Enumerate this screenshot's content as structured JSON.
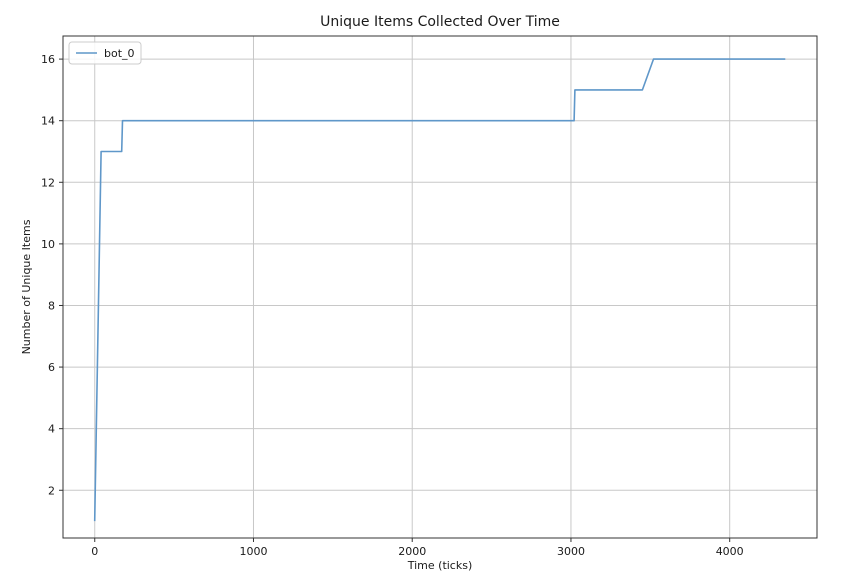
{
  "chart_data": {
    "type": "line",
    "title": "Unique Items Collected Over Time",
    "xlabel": "Time (ticks)",
    "ylabel": "Number of Unique Items",
    "xlim": [
      -200,
      4550
    ],
    "ylim": [
      0.45,
      16.75
    ],
    "xticks": [
      0,
      1000,
      2000,
      3000,
      4000
    ],
    "yticks": [
      2,
      4,
      6,
      8,
      10,
      12,
      14,
      16
    ],
    "grid": true,
    "legend_position": "top-left",
    "series": [
      {
        "name": "bot_0",
        "color": "#5f97c9",
        "points": [
          [
            0,
            1
          ],
          [
            10,
            4
          ],
          [
            40,
            13
          ],
          [
            170,
            13
          ],
          [
            175,
            14
          ],
          [
            3020,
            14
          ],
          [
            3025,
            15
          ],
          [
            3450,
            15
          ],
          [
            3520,
            16
          ],
          [
            4350,
            16
          ]
        ]
      }
    ]
  }
}
